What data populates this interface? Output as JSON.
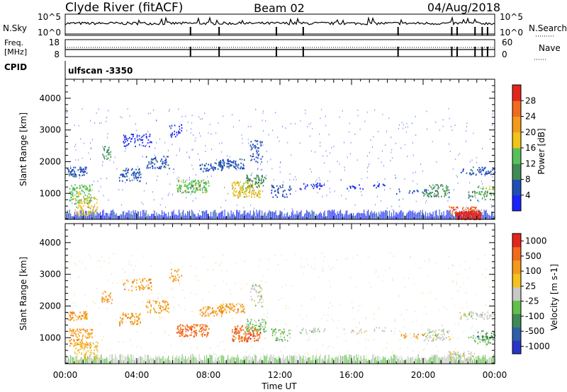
{
  "header": {
    "station": "Clyde River (fitACF)",
    "beam": "Beam 02",
    "date": "04/Aug/2018"
  },
  "top_panels": {
    "nsky_label": "N.Sky",
    "nsky_ticks": [
      "10^5",
      "10^0"
    ],
    "nsearch_label": "N.Search",
    "nsearch_ticks": [
      "10^5",
      "10^0"
    ],
    "freq_label_line1": "Freq.",
    "freq_label_line2": "[MHz]",
    "freq_ticks": [
      "18",
      "8"
    ],
    "nave_label": "Nave",
    "nave_ticks": [
      "60",
      "0"
    ],
    "cpid_label": "CPID",
    "cpid_value": "ulfscan -3350"
  },
  "chart_data": [
    {
      "type": "heatmap",
      "panel": "power",
      "xlabel": "",
      "ylabel": "Slant Range [km]",
      "ylim": [
        180,
        4600
      ],
      "yticks": [
        1000,
        2000,
        3000,
        4000
      ],
      "xlim": [
        0,
        24
      ],
      "colorbar_label": "Power [dB]",
      "colorbar_ticks": [
        "4",
        "8",
        "12",
        "16",
        "20",
        "24",
        "28"
      ],
      "colorbar_colors": [
        "#1a23ff",
        "#1f4fb5",
        "#3f8a55",
        "#56c15a",
        "#f0c419",
        "#f39a1c",
        "#f26a1e",
        "#e3261c"
      ]
    },
    {
      "type": "heatmap",
      "panel": "velocity",
      "xlabel": "Time UT",
      "ylabel": "Slant Range [km]",
      "ylim": [
        180,
        4600
      ],
      "yticks": [
        1000,
        2000,
        3000,
        4000
      ],
      "xlim": [
        0,
        24
      ],
      "xticks": [
        "00:00",
        "04:00",
        "08:00",
        "12:00",
        "16:00",
        "20:00",
        "00:00"
      ],
      "colorbar_label": "Velocity [m s-1]",
      "colorbar_ticks": [
        "1000",
        "500",
        "100",
        "25",
        "-25",
        "-100",
        "-500",
        "-1000"
      ],
      "colorbar_colors": [
        "#2a35c8",
        "#2f5fa8",
        "#3f8a55",
        "#62c04a",
        "#c8c8c8",
        "#f5c21b",
        "#f39a1c",
        "#f26a1e",
        "#e3261c"
      ]
    }
  ]
}
